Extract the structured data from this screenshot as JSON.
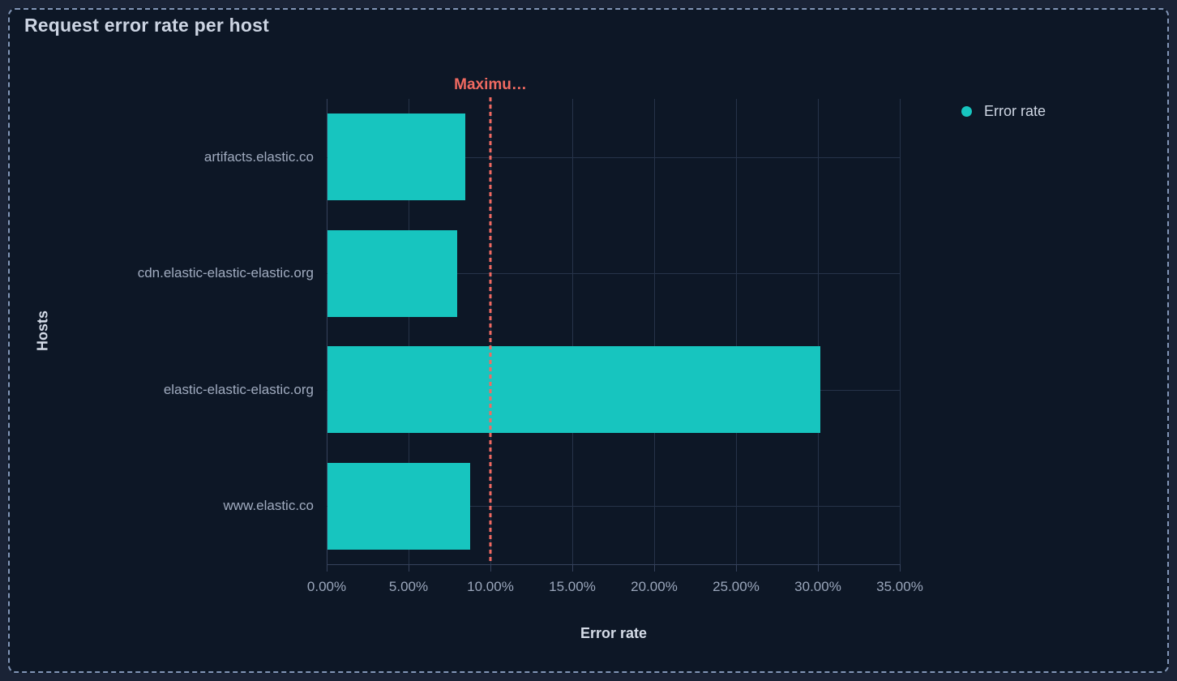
{
  "panel": {
    "title": "Request error rate per host"
  },
  "colors": {
    "page_background": "#1a2336",
    "panel_background": "#0d1726",
    "panel_border": "#8296b7",
    "bar": "#17c5bf",
    "threshold": "#f16a61",
    "gridline": "#263349",
    "axis_line": "#36425c",
    "title_text": "#ccd4e2",
    "tick_label_text": "#9aa6bb",
    "axis_title_text": "#d5dce8"
  },
  "legend": {
    "position": "top-right",
    "items": [
      {
        "label": "Error rate",
        "color": "#17c5bf"
      }
    ]
  },
  "chart_data": {
    "type": "bar",
    "orientation": "horizontal",
    "title": "Request error rate per host",
    "categories": [
      "artifacts.elastic.co",
      "cdn.elastic-elastic-elastic.org",
      "elastic-elastic-elastic.org",
      "www.elastic.co"
    ],
    "series": [
      {
        "name": "Error rate",
        "color": "#17c5bf",
        "values": [
          8.4,
          7.9,
          30.1,
          8.7
        ],
        "unit": "%"
      }
    ],
    "xlabel": "Error rate",
    "ylabel": "Hosts",
    "xlim": [
      0,
      35
    ],
    "x_ticks": [
      {
        "value": 0,
        "label": "0.00%"
      },
      {
        "value": 5,
        "label": "5.00%"
      },
      {
        "value": 10,
        "label": "10.00%"
      },
      {
        "value": 15,
        "label": "15.00%"
      },
      {
        "value": 20,
        "label": "20.00%"
      },
      {
        "value": 25,
        "label": "25.00%"
      },
      {
        "value": 30,
        "label": "30.00%"
      },
      {
        "value": 35,
        "label": "35.00%"
      }
    ],
    "threshold": {
      "label": "Maximu…",
      "value": 10,
      "color": "#f16a61",
      "style": "dashed"
    },
    "grid": true,
    "legend_position": "top-right"
  }
}
